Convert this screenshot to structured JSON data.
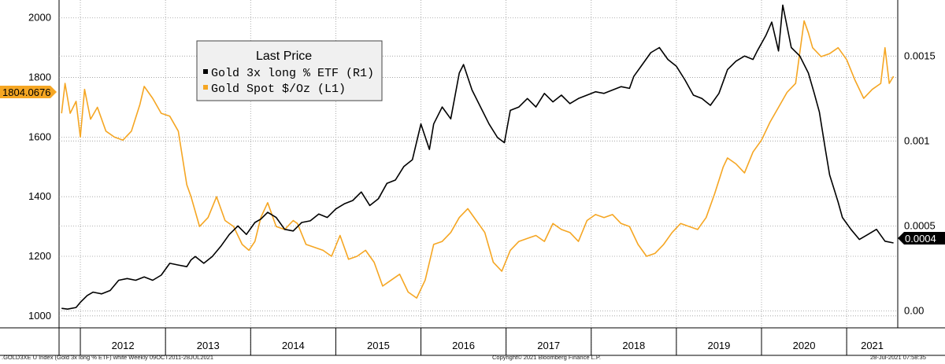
{
  "chart_data": {
    "type": "line",
    "title": "",
    "legend": {
      "title": "Last Price",
      "placement": "top-left",
      "entries": [
        {
          "label": "Gold 3x long % ETF  (R1)",
          "color": "#000000",
          "axis": "right"
        },
        {
          "label": "Gold Spot  $/Oz  (L1)",
          "color": "#f5a623",
          "axis": "left"
        }
      ]
    },
    "left_axis": {
      "ticks": [
        "1000",
        "1200",
        "1400",
        "1600",
        "1800",
        "2000"
      ],
      "ylim": [
        960,
        2060
      ]
    },
    "right_axis": {
      "ticks": [
        "0.00",
        "0.0005",
        "0.001",
        "0.0015"
      ],
      "ylim": [
        -0.0001,
        0.00183
      ]
    },
    "x_axis": {
      "labels": [
        "2012",
        "2013",
        "2014",
        "2015",
        "2016",
        "2017",
        "2018",
        "2019",
        "2020",
        "2021"
      ],
      "range": [
        "2011-10",
        "2021-07"
      ]
    },
    "grid": true,
    "last_value_tags": {
      "left": "1804.0676",
      "right": "0.0004"
    },
    "series": [
      {
        "name": "Gold 3x long % ETF  (R1)",
        "axis": "right",
        "color": "#000000",
        "x": [
          2011.78,
          2011.85,
          2011.95,
          2012.0,
          2012.08,
          2012.15,
          2012.25,
          2012.35,
          2012.45,
          2012.55,
          2012.65,
          2012.75,
          2012.85,
          2012.95,
          2013.05,
          2013.15,
          2013.25,
          2013.3,
          2013.35,
          2013.45,
          2013.55,
          2013.65,
          2013.75,
          2013.85,
          2013.95,
          2014.05,
          2014.12,
          2014.2,
          2014.3,
          2014.4,
          2014.5,
          2014.6,
          2014.7,
          2014.8,
          2014.9,
          2015.0,
          2015.1,
          2015.2,
          2015.3,
          2015.4,
          2015.5,
          2015.6,
          2015.7,
          2015.8,
          2015.9,
          2016.0,
          2016.1,
          2016.15,
          2016.25,
          2016.35,
          2016.45,
          2016.5,
          2016.6,
          2016.7,
          2016.8,
          2016.9,
          2016.98,
          2017.05,
          2017.15,
          2017.25,
          2017.35,
          2017.45,
          2017.55,
          2017.65,
          2017.75,
          2017.85,
          2017.95,
          2018.05,
          2018.15,
          2018.25,
          2018.35,
          2018.45,
          2018.5,
          2018.6,
          2018.7,
          2018.8,
          2018.9,
          2019.0,
          2019.1,
          2019.2,
          2019.3,
          2019.4,
          2019.5,
          2019.55,
          2019.6,
          2019.7,
          2019.8,
          2019.9,
          2019.95,
          2020.05,
          2020.12,
          2020.2,
          2020.25,
          2020.35,
          2020.45,
          2020.55,
          2020.62,
          2020.68,
          2020.75,
          2020.8,
          2020.85,
          2020.9,
          2020.95,
          2021.05,
          2021.15,
          2021.25,
          2021.35,
          2021.45,
          2021.55
        ],
        "values": [
          1.5e-05,
          1e-05,
          2e-05,
          5e-05,
          9e-05,
          0.00011,
          0.0001,
          0.00012,
          0.00018,
          0.00019,
          0.00018,
          0.0002,
          0.00018,
          0.00021,
          0.00028,
          0.00027,
          0.00026,
          0.0003,
          0.00032,
          0.00028,
          0.00032,
          0.00038,
          0.00045,
          0.0005,
          0.00045,
          0.00052,
          0.00054,
          0.00058,
          0.00055,
          0.00048,
          0.00047,
          0.00052,
          0.00053,
          0.00057,
          0.00055,
          0.0006,
          0.00063,
          0.00065,
          0.0007,
          0.00062,
          0.00066,
          0.00075,
          0.00077,
          0.00085,
          0.00089,
          0.0011,
          0.00095,
          0.0011,
          0.0012,
          0.00113,
          0.0014,
          0.00145,
          0.0013,
          0.0012,
          0.0011,
          0.00102,
          0.00099,
          0.00118,
          0.0012,
          0.00125,
          0.0012,
          0.00128,
          0.00123,
          0.00127,
          0.00122,
          0.00125,
          0.00127,
          0.00129,
          0.00128,
          0.0013,
          0.00132,
          0.00131,
          0.00138,
          0.00145,
          0.00152,
          0.00155,
          0.00148,
          0.00144,
          0.00136,
          0.00127,
          0.00125,
          0.00121,
          0.00128,
          0.00135,
          0.00142,
          0.00147,
          0.0015,
          0.00148,
          0.00153,
          0.00162,
          0.0017,
          0.00153,
          0.0018,
          0.00155,
          0.0015,
          0.0014,
          0.00128,
          0.00117,
          0.00095,
          0.0008,
          0.00072,
          0.00064,
          0.00055,
          0.00048,
          0.00042,
          0.00045,
          0.00048,
          0.00041,
          0.0004
        ]
      },
      {
        "name": "Gold Spot  $/Oz  (L1)",
        "axis": "left",
        "color": "#f5a623",
        "x": [
          2011.78,
          2011.82,
          2011.88,
          2011.95,
          2012.0,
          2012.05,
          2012.12,
          2012.2,
          2012.3,
          2012.4,
          2012.5,
          2012.6,
          2012.7,
          2012.75,
          2012.85,
          2012.95,
          2013.05,
          2013.15,
          2013.25,
          2013.3,
          2013.4,
          2013.5,
          2013.6,
          2013.7,
          2013.8,
          2013.9,
          2013.98,
          2014.05,
          2014.12,
          2014.2,
          2014.3,
          2014.4,
          2014.5,
          2014.55,
          2014.65,
          2014.75,
          2014.85,
          2014.95,
          2015.05,
          2015.15,
          2015.25,
          2015.35,
          2015.45,
          2015.55,
          2015.65,
          2015.75,
          2015.85,
          2015.95,
          2016.05,
          2016.15,
          2016.25,
          2016.35,
          2016.45,
          2016.55,
          2016.65,
          2016.75,
          2016.85,
          2016.95,
          2017.05,
          2017.15,
          2017.25,
          2017.35,
          2017.45,
          2017.55,
          2017.65,
          2017.75,
          2017.85,
          2017.95,
          2018.05,
          2018.15,
          2018.25,
          2018.35,
          2018.45,
          2018.55,
          2018.65,
          2018.75,
          2018.85,
          2018.95,
          2019.05,
          2019.15,
          2019.25,
          2019.35,
          2019.45,
          2019.55,
          2019.6,
          2019.7,
          2019.8,
          2019.9,
          2020.0,
          2020.1,
          2020.2,
          2020.3,
          2020.4,
          2020.5,
          2020.55,
          2020.6,
          2020.7,
          2020.8,
          2020.9,
          2021.0,
          2021.1,
          2021.2,
          2021.3,
          2021.4,
          2021.45,
          2021.5,
          2021.55
        ],
        "values": [
          1680,
          1780,
          1680,
          1720,
          1600,
          1760,
          1660,
          1700,
          1620,
          1600,
          1590,
          1620,
          1710,
          1770,
          1730,
          1680,
          1670,
          1620,
          1440,
          1400,
          1300,
          1330,
          1400,
          1320,
          1300,
          1240,
          1220,
          1250,
          1330,
          1380,
          1300,
          1290,
          1320,
          1310,
          1240,
          1230,
          1220,
          1200,
          1270,
          1190,
          1200,
          1220,
          1180,
          1100,
          1120,
          1140,
          1080,
          1060,
          1120,
          1240,
          1250,
          1280,
          1330,
          1360,
          1320,
          1280,
          1180,
          1150,
          1220,
          1250,
          1260,
          1270,
          1250,
          1310,
          1290,
          1280,
          1250,
          1320,
          1340,
          1330,
          1340,
          1310,
          1300,
          1240,
          1200,
          1210,
          1240,
          1280,
          1310,
          1300,
          1290,
          1330,
          1410,
          1500,
          1530,
          1510,
          1480,
          1550,
          1590,
          1650,
          1700,
          1750,
          1780,
          1990,
          1950,
          1900,
          1870,
          1880,
          1900,
          1860,
          1790,
          1730,
          1760,
          1780,
          1900,
          1780,
          1804
        ]
      }
    ]
  },
  "footer": {
    "left": ".GOLD3XE U Index (Gold 3x long % ETF) white  Weekly 09OCT2011-28JUL2021",
    "center": "Copyright© 2021 Bloomberg Finance L.P.",
    "right": "28-Jul-2021 07:58:35"
  }
}
